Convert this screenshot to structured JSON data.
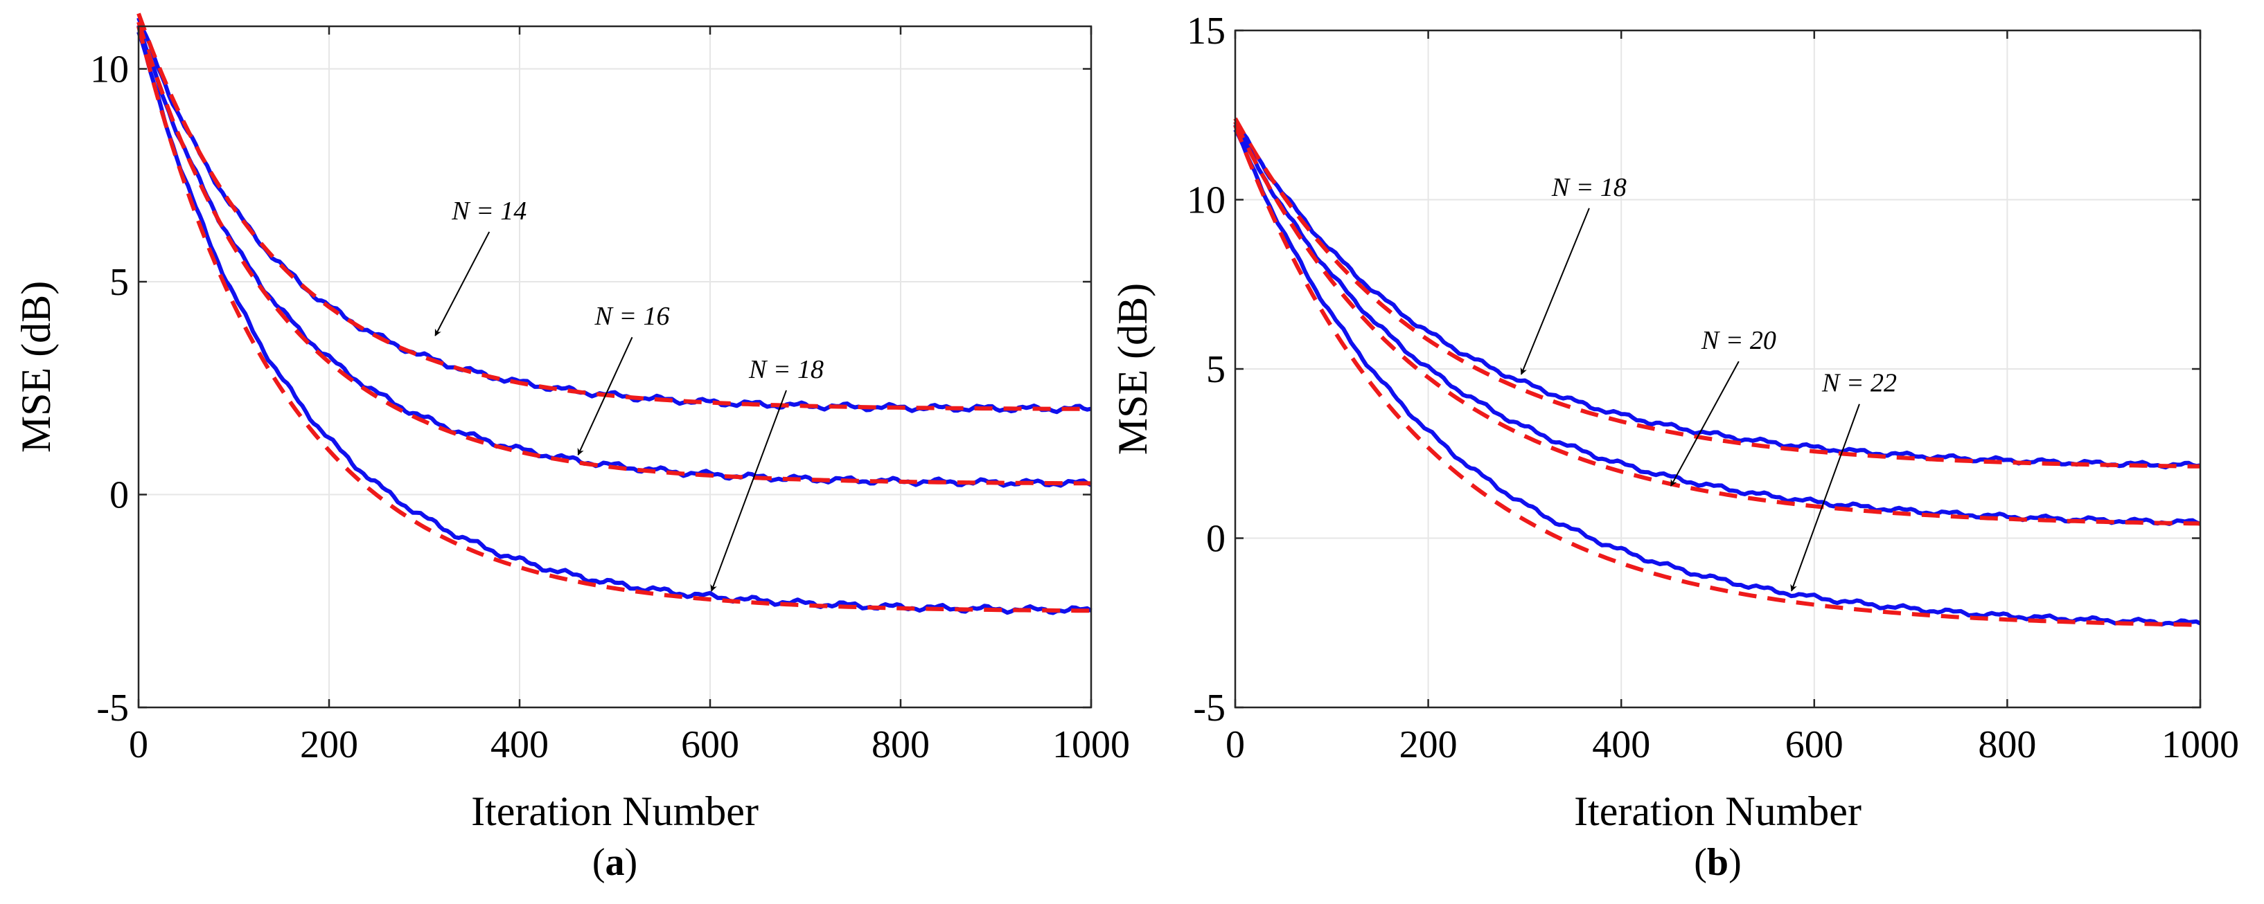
{
  "chart_data": [
    {
      "type": "line",
      "caption": "(a)",
      "xlabel": "Iteration Number",
      "ylabel": "MSE (dB)",
      "xlim": [
        0,
        1000
      ],
      "ylim": [
        -5,
        11
      ],
      "xticks": [
        0,
        200,
        400,
        600,
        800,
        1000
      ],
      "yticks": [
        -5,
        0,
        5,
        10
      ],
      "ytick_labels": [
        "-5",
        "0",
        "5",
        "10"
      ],
      "grid": true,
      "series": [
        {
          "name": "N = 14 simulation",
          "style": "solid",
          "color": "#1010ee",
          "start": 11.2,
          "floor": 2.0,
          "tau": 150
        },
        {
          "name": "N = 14 theory",
          "style": "dashed",
          "color": "#ee1a1a",
          "start": 11.3,
          "floor": 2.0,
          "tau": 148
        },
        {
          "name": "N = 16 simulation",
          "style": "solid",
          "color": "#1010ee",
          "start": 11.0,
          "floor": 0.25,
          "tau": 155
        },
        {
          "name": "N = 16 theory",
          "style": "dashed",
          "color": "#ee1a1a",
          "start": 11.1,
          "floor": 0.25,
          "tau": 150
        },
        {
          "name": "N = 18 simulation",
          "style": "solid",
          "color": "#1010ee",
          "start": 10.9,
          "floor": -2.75,
          "tau": 165
        },
        {
          "name": "N = 18 theory",
          "style": "dashed",
          "color": "#ee1a1a",
          "start": 11.0,
          "floor": -2.75,
          "tau": 155
        }
      ],
      "annotations": [
        {
          "label": "N = 14",
          "x": 310,
          "y": 3.7
        },
        {
          "label": "N = 16",
          "x": 460,
          "y": 0.9
        },
        {
          "label": "N = 18",
          "x": 600,
          "y": -2.3
        }
      ]
    },
    {
      "type": "line",
      "caption": "(b)",
      "xlabel": "Iteration Number",
      "ylabel": "MSE (dB)",
      "xlim": [
        0,
        1000
      ],
      "ylim": [
        -5,
        15
      ],
      "xticks": [
        0,
        200,
        400,
        600,
        800,
        1000
      ],
      "yticks": [
        -5,
        0,
        5,
        10,
        15
      ],
      "ytick_labels": [
        "-5",
        "0",
        "5",
        "10",
        "15"
      ],
      "grid": true,
      "series": [
        {
          "name": "N = 18 simulation",
          "style": "solid",
          "color": "#1010ee",
          "start": 12.3,
          "floor": 2.05,
          "tau": 215
        },
        {
          "name": "N = 18 theory",
          "style": "dashed",
          "color": "#ee1a1a",
          "start": 12.4,
          "floor": 2.05,
          "tau": 200
        },
        {
          "name": "N = 20 simulation",
          "style": "solid",
          "color": "#1010ee",
          "start": 12.2,
          "floor": 0.35,
          "tau": 215
        },
        {
          "name": "N = 20 theory",
          "style": "dashed",
          "color": "#ee1a1a",
          "start": 12.3,
          "floor": 0.35,
          "tau": 200
        },
        {
          "name": "N = 22 simulation",
          "style": "solid",
          "color": "#1010ee",
          "start": 12.1,
          "floor": -2.65,
          "tau": 215
        },
        {
          "name": "N = 22 theory",
          "style": "dashed",
          "color": "#ee1a1a",
          "start": 12.2,
          "floor": -2.65,
          "tau": 195
        }
      ],
      "annotations": [
        {
          "label": "N = 18",
          "x": 295,
          "y": 4.8
        },
        {
          "label": "N = 20",
          "x": 450,
          "y": 1.5
        },
        {
          "label": "N = 22",
          "x": 575,
          "y": -1.6
        }
      ]
    }
  ]
}
